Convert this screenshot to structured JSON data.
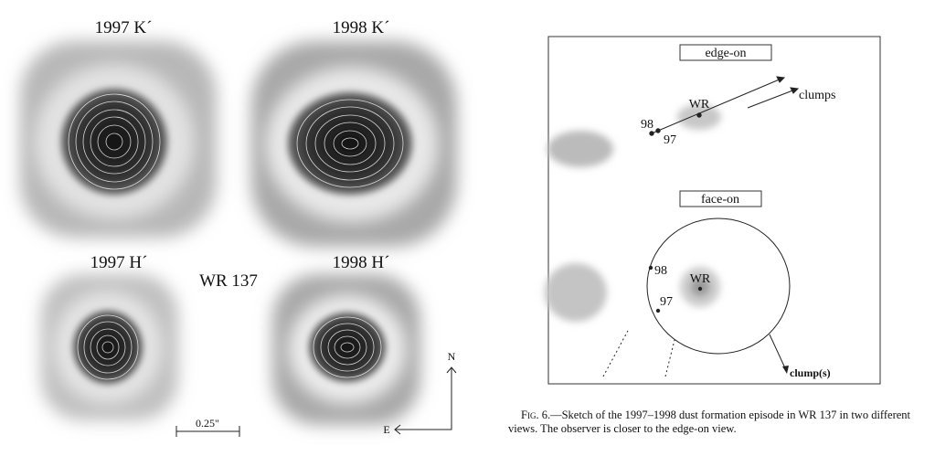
{
  "figure_left": {
    "panels": [
      {
        "label": "1997 K´"
      },
      {
        "label": "1998 K´"
      },
      {
        "label": "1997 H´"
      },
      {
        "label": "1998 H´"
      }
    ],
    "object": "WR 137",
    "scale": "0.25\"",
    "compass": {
      "north": "N",
      "east": "E"
    }
  },
  "sketch": {
    "edge_on": {
      "title": "edge-on",
      "arrow": "clumps",
      "star": "WR",
      "mark_98": "98",
      "mark_97": "97"
    },
    "face_on": {
      "title": "face-on",
      "arrow": "clump(s)",
      "star": "WR",
      "mark_98": "98",
      "mark_97": "97"
    }
  },
  "caption": {
    "label": "Fig. 6.",
    "text": "—Sketch of the 1997–1998 dust formation episode in WR 137 in two different views. The observer is closer to the edge-on view."
  }
}
